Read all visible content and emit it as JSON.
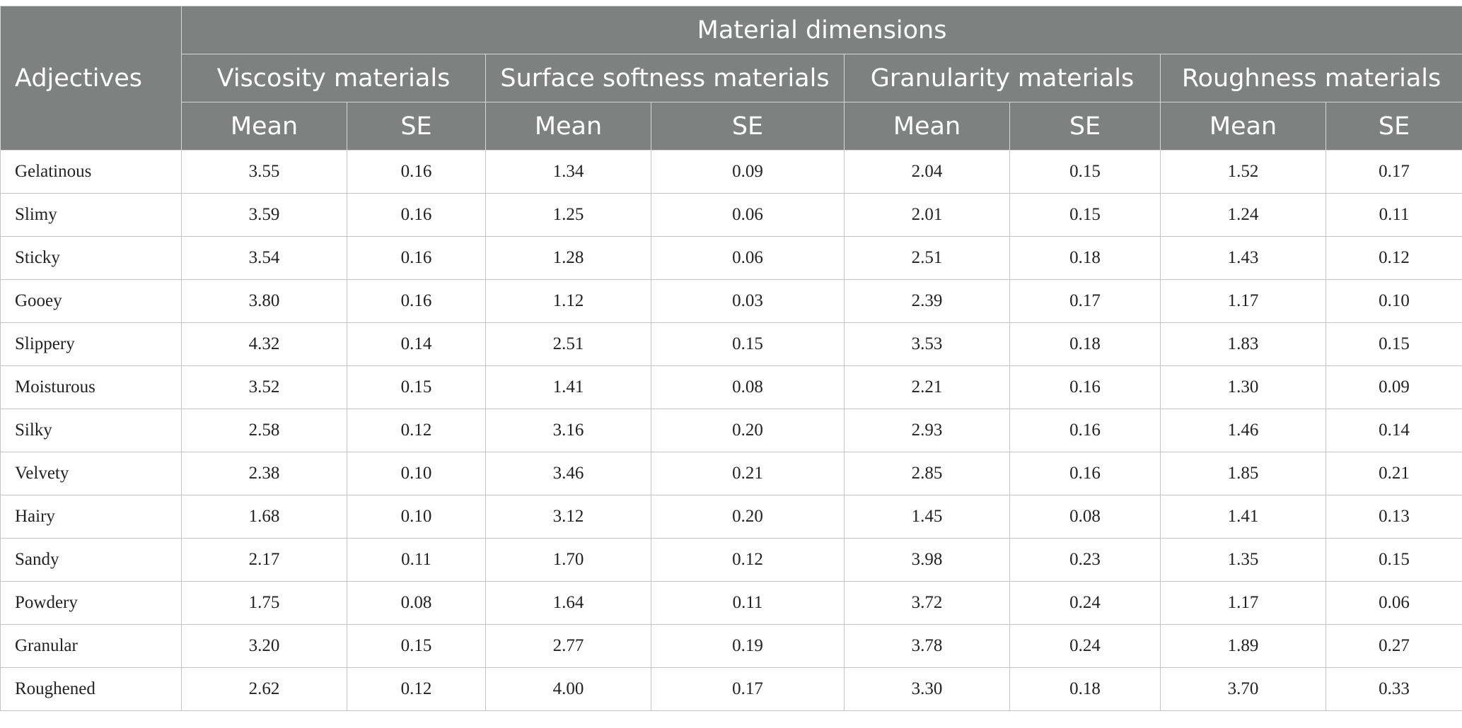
{
  "table": {
    "adjectives_header": "Adjectives",
    "group_header": "Material dimensions",
    "dimensions": [
      "Viscosity materials",
      "Surface softness materials",
      "Granularity materials",
      "Roughness materials"
    ],
    "subheaders": [
      "Mean",
      "SE"
    ],
    "rows": [
      {
        "adjective": "Gelatinous",
        "values": [
          "3.55",
          "0.16",
          "1.34",
          "0.09",
          "2.04",
          "0.15",
          "1.52",
          "0.17"
        ]
      },
      {
        "adjective": "Slimy",
        "values": [
          "3.59",
          "0.16",
          "1.25",
          "0.06",
          "2.01",
          "0.15",
          "1.24",
          "0.11"
        ]
      },
      {
        "adjective": "Sticky",
        "values": [
          "3.54",
          "0.16",
          "1.28",
          "0.06",
          "2.51",
          "0.18",
          "1.43",
          "0.12"
        ]
      },
      {
        "adjective": "Gooey",
        "values": [
          "3.80",
          "0.16",
          "1.12",
          "0.03",
          "2.39",
          "0.17",
          "1.17",
          "0.10"
        ]
      },
      {
        "adjective": "Slippery",
        "values": [
          "4.32",
          "0.14",
          "2.51",
          "0.15",
          "3.53",
          "0.18",
          "1.83",
          "0.15"
        ]
      },
      {
        "adjective": "Moisturous",
        "values": [
          "3.52",
          "0.15",
          "1.41",
          "0.08",
          "2.21",
          "0.16",
          "1.30",
          "0.09"
        ]
      },
      {
        "adjective": "Silky",
        "values": [
          "2.58",
          "0.12",
          "3.16",
          "0.20",
          "2.93",
          "0.16",
          "1.46",
          "0.14"
        ]
      },
      {
        "adjective": "Velvety",
        "values": [
          "2.38",
          "0.10",
          "3.46",
          "0.21",
          "2.85",
          "0.16",
          "1.85",
          "0.21"
        ]
      },
      {
        "adjective": "Hairy",
        "values": [
          "1.68",
          "0.10",
          "3.12",
          "0.20",
          "1.45",
          "0.08",
          "1.41",
          "0.13"
        ]
      },
      {
        "adjective": "Sandy",
        "values": [
          "2.17",
          "0.11",
          "1.70",
          "0.12",
          "3.98",
          "0.23",
          "1.35",
          "0.15"
        ]
      },
      {
        "adjective": "Powdery",
        "values": [
          "1.75",
          "0.08",
          "1.64",
          "0.11",
          "3.72",
          "0.24",
          "1.17",
          "0.06"
        ]
      },
      {
        "adjective": "Granular",
        "values": [
          "3.20",
          "0.15",
          "2.77",
          "0.19",
          "3.78",
          "0.24",
          "1.89",
          "0.27"
        ]
      },
      {
        "adjective": "Roughened",
        "values": [
          "2.62",
          "0.12",
          "4.00",
          "0.17",
          "3.30",
          "0.18",
          "3.70",
          "0.33"
        ]
      }
    ]
  }
}
